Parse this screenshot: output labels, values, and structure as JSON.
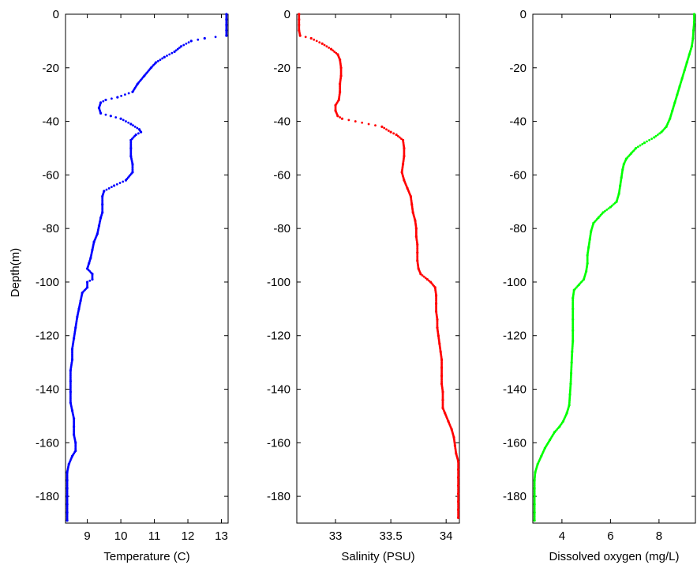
{
  "figure": {
    "shared_ylabel": "Depth(m)"
  },
  "chart_data": [
    {
      "type": "scatter",
      "xlabel": "Temperature (C)",
      "ylabel": "Depth(m)",
      "xlim": [
        8.35,
        13.2
      ],
      "ylim": [
        -190,
        0
      ],
      "xticks": [
        9,
        10,
        11,
        12,
        13
      ],
      "yticks": [
        0,
        -20,
        -40,
        -60,
        -80,
        -100,
        -120,
        -140,
        -160,
        -180
      ],
      "grid": false,
      "color": "#0000ff",
      "series": [
        {
          "values": [
            [
              13.15,
              0
            ],
            [
              13.15,
              -2
            ],
            [
              13.15,
              -4
            ],
            [
              13.15,
              -6
            ],
            [
              13.15,
              -8
            ],
            [
              12.5,
              -9
            ],
            [
              12.1,
              -10
            ],
            [
              11.8,
              -12
            ],
            [
              11.6,
              -14
            ],
            [
              11.3,
              -16
            ],
            [
              11.05,
              -18
            ],
            [
              10.9,
              -20
            ],
            [
              10.7,
              -23
            ],
            [
              10.5,
              -26
            ],
            [
              10.35,
              -29
            ],
            [
              9.9,
              -31
            ],
            [
              9.55,
              -32
            ],
            [
              9.4,
              -33
            ],
            [
              9.35,
              -35
            ],
            [
              9.4,
              -37
            ],
            [
              9.7,
              -38
            ],
            [
              10.0,
              -39
            ],
            [
              10.3,
              -41
            ],
            [
              10.55,
              -43
            ],
            [
              10.6,
              -44
            ],
            [
              10.45,
              -45
            ],
            [
              10.3,
              -47
            ],
            [
              10.3,
              -50
            ],
            [
              10.3,
              -53
            ],
            [
              10.35,
              -56
            ],
            [
              10.35,
              -59
            ],
            [
              10.15,
              -62
            ],
            [
              9.8,
              -64
            ],
            [
              9.5,
              -66
            ],
            [
              9.45,
              -68
            ],
            [
              9.45,
              -71
            ],
            [
              9.45,
              -74
            ],
            [
              9.4,
              -76
            ],
            [
              9.35,
              -79
            ],
            [
              9.3,
              -82
            ],
            [
              9.2,
              -85
            ],
            [
              9.15,
              -88
            ],
            [
              9.1,
              -91
            ],
            [
              9.05,
              -93
            ],
            [
              9.0,
              -95
            ],
            [
              9.15,
              -97
            ],
            [
              9.15,
              -99
            ],
            [
              9.0,
              -100
            ],
            [
              9.0,
              -102
            ],
            [
              8.85,
              -104
            ],
            [
              8.8,
              -107
            ],
            [
              8.75,
              -110
            ],
            [
              8.7,
              -113
            ],
            [
              8.65,
              -117
            ],
            [
              8.6,
              -121
            ],
            [
              8.55,
              -125
            ],
            [
              8.55,
              -129
            ],
            [
              8.5,
              -133
            ],
            [
              8.5,
              -137
            ],
            [
              8.5,
              -141
            ],
            [
              8.5,
              -145
            ],
            [
              8.55,
              -148
            ],
            [
              8.6,
              -151
            ],
            [
              8.6,
              -154
            ],
            [
              8.6,
              -157
            ],
            [
              8.65,
              -160
            ],
            [
              8.65,
              -163
            ],
            [
              8.55,
              -165
            ],
            [
              8.45,
              -168
            ],
            [
              8.4,
              -171
            ],
            [
              8.4,
              -174
            ],
            [
              8.4,
              -177
            ],
            [
              8.4,
              -180
            ],
            [
              8.4,
              -183
            ],
            [
              8.4,
              -186
            ],
            [
              8.4,
              -189
            ]
          ]
        }
      ]
    },
    {
      "type": "scatter",
      "xlabel": "Salinity (PSU)",
      "ylabel": "",
      "xlim": [
        32.65,
        34.12
      ],
      "ylim": [
        -190,
        0
      ],
      "xticks": [
        33,
        33.5,
        34
      ],
      "yticks": [
        0,
        -20,
        -40,
        -60,
        -80,
        -100,
        -120,
        -140,
        -160,
        -180
      ],
      "grid": false,
      "color": "#ff0000",
      "series": [
        {
          "values": [
            [
              32.67,
              0
            ],
            [
              32.67,
              -2
            ],
            [
              32.67,
              -4
            ],
            [
              32.67,
              -6
            ],
            [
              32.68,
              -8
            ],
            [
              32.78,
              -9
            ],
            [
              32.88,
              -11
            ],
            [
              32.96,
              -13
            ],
            [
              33.02,
              -15
            ],
            [
              33.04,
              -17
            ],
            [
              33.05,
              -20
            ],
            [
              33.05,
              -23
            ],
            [
              33.04,
              -26
            ],
            [
              33.04,
              -29
            ],
            [
              33.03,
              -32
            ],
            [
              33.0,
              -34
            ],
            [
              33.0,
              -36
            ],
            [
              33.02,
              -38
            ],
            [
              33.06,
              -39
            ],
            [
              33.42,
              -42
            ],
            [
              33.5,
              -44
            ],
            [
              33.55,
              -45
            ],
            [
              33.61,
              -47
            ],
            [
              33.62,
              -50
            ],
            [
              33.62,
              -53
            ],
            [
              33.61,
              -56
            ],
            [
              33.6,
              -59
            ],
            [
              33.62,
              -62
            ],
            [
              33.65,
              -65
            ],
            [
              33.68,
              -68
            ],
            [
              33.69,
              -71
            ],
            [
              33.7,
              -74
            ],
            [
              33.72,
              -77
            ],
            [
              33.73,
              -80
            ],
            [
              33.73,
              -83
            ],
            [
              33.74,
              -86
            ],
            [
              33.74,
              -89
            ],
            [
              33.74,
              -92
            ],
            [
              33.75,
              -95
            ],
            [
              33.77,
              -97
            ],
            [
              33.83,
              -99
            ],
            [
              33.86,
              -100
            ],
            [
              33.9,
              -102
            ],
            [
              33.91,
              -105
            ],
            [
              33.91,
              -108
            ],
            [
              33.91,
              -111
            ],
            [
              33.92,
              -114
            ],
            [
              33.92,
              -117
            ],
            [
              33.93,
              -120
            ],
            [
              33.94,
              -123
            ],
            [
              33.95,
              -126
            ],
            [
              33.96,
              -129
            ],
            [
              33.96,
              -132
            ],
            [
              33.96,
              -135
            ],
            [
              33.96,
              -138
            ],
            [
              33.97,
              -141
            ],
            [
              33.97,
              -144
            ],
            [
              33.97,
              -147
            ],
            [
              33.99,
              -149
            ],
            [
              34.02,
              -152
            ],
            [
              34.05,
              -155
            ],
            [
              34.07,
              -158
            ],
            [
              34.08,
              -161
            ],
            [
              34.09,
              -164
            ],
            [
              34.11,
              -167
            ],
            [
              34.11,
              -170
            ],
            [
              34.11,
              -173
            ],
            [
              34.11,
              -176
            ],
            [
              34.11,
              -179
            ],
            [
              34.11,
              -182
            ],
            [
              34.11,
              -185
            ],
            [
              34.11,
              -188
            ]
          ]
        }
      ]
    },
    {
      "type": "scatter",
      "xlabel": "Dissolved oxygen (mg/L)",
      "ylabel": "",
      "xlim": [
        2.8,
        9.5
      ],
      "ylim": [
        -190,
        0
      ],
      "xticks": [
        4,
        6,
        8
      ],
      "yticks": [
        0,
        -20,
        -40,
        -60,
        -80,
        -100,
        -120,
        -140,
        -160,
        -180
      ],
      "grid": false,
      "color": "#00ff00",
      "series": [
        {
          "values": [
            [
              9.45,
              0
            ],
            [
              9.45,
              -3
            ],
            [
              9.42,
              -6
            ],
            [
              9.4,
              -9
            ],
            [
              9.35,
              -12
            ],
            [
              9.25,
              -15
            ],
            [
              9.15,
              -18
            ],
            [
              9.05,
              -21
            ],
            [
              8.95,
              -24
            ],
            [
              8.85,
              -27
            ],
            [
              8.75,
              -30
            ],
            [
              8.65,
              -33
            ],
            [
              8.55,
              -36
            ],
            [
              8.45,
              -39
            ],
            [
              8.3,
              -42
            ],
            [
              8.1,
              -44
            ],
            [
              7.8,
              -46
            ],
            [
              7.4,
              -48
            ],
            [
              7.05,
              -50
            ],
            [
              6.85,
              -52
            ],
            [
              6.65,
              -54
            ],
            [
              6.55,
              -56
            ],
            [
              6.5,
              -58
            ],
            [
              6.45,
              -61
            ],
            [
              6.4,
              -64
            ],
            [
              6.35,
              -67
            ],
            [
              6.25,
              -70
            ],
            [
              6.0,
              -72
            ],
            [
              5.7,
              -74
            ],
            [
              5.5,
              -76
            ],
            [
              5.3,
              -78
            ],
            [
              5.2,
              -81
            ],
            [
              5.15,
              -84
            ],
            [
              5.1,
              -87
            ],
            [
              5.05,
              -90
            ],
            [
              5.05,
              -93
            ],
            [
              5.0,
              -96
            ],
            [
              4.9,
              -99
            ],
            [
              4.7,
              -101
            ],
            [
              4.5,
              -103
            ],
            [
              4.45,
              -106
            ],
            [
              4.45,
              -110
            ],
            [
              4.45,
              -114
            ],
            [
              4.45,
              -118
            ],
            [
              4.45,
              -122
            ],
            [
              4.42,
              -126
            ],
            [
              4.4,
              -130
            ],
            [
              4.38,
              -134
            ],
            [
              4.36,
              -138
            ],
            [
              4.33,
              -142
            ],
            [
              4.3,
              -146
            ],
            [
              4.2,
              -149
            ],
            [
              4.05,
              -152
            ],
            [
              3.9,
              -154
            ],
            [
              3.7,
              -156
            ],
            [
              3.5,
              -159
            ],
            [
              3.3,
              -162
            ],
            [
              3.15,
              -165
            ],
            [
              3.0,
              -168
            ],
            [
              2.9,
              -171
            ],
            [
              2.87,
              -174
            ],
            [
              2.87,
              -177
            ],
            [
              2.87,
              -180
            ],
            [
              2.87,
              -183
            ],
            [
              2.87,
              -186
            ],
            [
              2.87,
              -189
            ]
          ]
        }
      ]
    }
  ]
}
